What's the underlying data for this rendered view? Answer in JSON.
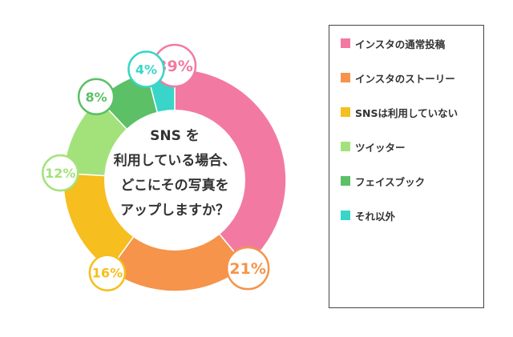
{
  "chart_data": {
    "type": "pie",
    "style": "donut",
    "center_label": [
      "SNS を",
      "利用している場合、",
      "どこにその写真を",
      "アップしますか？"
    ],
    "categories": [
      "インスタの通常投稿",
      "インスタのストーリー",
      "SNSは利用していない",
      "ツイッター",
      "フェイスブック",
      "それ以外"
    ],
    "values": [
      39,
      21,
      16,
      12,
      8,
      4
    ],
    "value_labels": [
      "39%",
      "21%",
      "16%",
      "12%",
      "8%",
      "4%"
    ],
    "colors": [
      "#F27AA2",
      "#F5944A",
      "#F6BE1E",
      "#A3E27A",
      "#5BC066",
      "#39D5C9"
    ],
    "legend_position": "right"
  }
}
